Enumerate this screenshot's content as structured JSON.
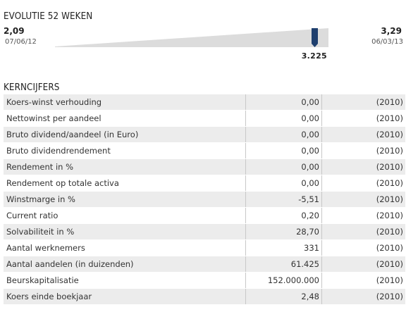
{
  "evolutie": {
    "title": "EVOLUTIE 52 WEKEN",
    "low_value": "2,09",
    "low_date": "07/06/12",
    "high_value": "3,29",
    "high_date": "06/03/13",
    "current_value": "3.225",
    "current_position": 0.95,
    "marker_color": "#1f3f6e",
    "bar_color": "#dcdcdc"
  },
  "kerncijfers": {
    "title": "KERNCIJFERS",
    "rows": [
      {
        "label": "Koers-winst verhouding",
        "value": "0,00",
        "year": "(2010)"
      },
      {
        "label": "Nettowinst per aandeel",
        "value": "0,00",
        "year": "(2010)"
      },
      {
        "label": "Bruto dividend/aandeel (in Euro)",
        "value": "0,00",
        "year": "(2010)"
      },
      {
        "label": "Bruto dividendrendement",
        "value": "0,00",
        "year": "(2010)"
      },
      {
        "label": "Rendement in %",
        "value": "0,00",
        "year": "(2010)"
      },
      {
        "label": "Rendement op totale activa",
        "value": "0,00",
        "year": "(2010)"
      },
      {
        "label": "Winstmarge in %",
        "value": "-5,51",
        "year": "(2010)"
      },
      {
        "label": "Current ratio",
        "value": "0,20",
        "year": "(2010)"
      },
      {
        "label": "Solvabiliteit in %",
        "value": "28,70",
        "year": "(2010)"
      },
      {
        "label": "Aantal werknemers",
        "value": "331",
        "year": "(2010)"
      },
      {
        "label": "Aantal aandelen (in duizenden)",
        "value": "61.425",
        "year": "(2010)"
      },
      {
        "label": "Beurskapitalisatie",
        "value": "152.000.000",
        "year": "(2010)"
      },
      {
        "label": "Koers einde boekjaar",
        "value": "2,48",
        "year": "(2010)"
      }
    ]
  }
}
